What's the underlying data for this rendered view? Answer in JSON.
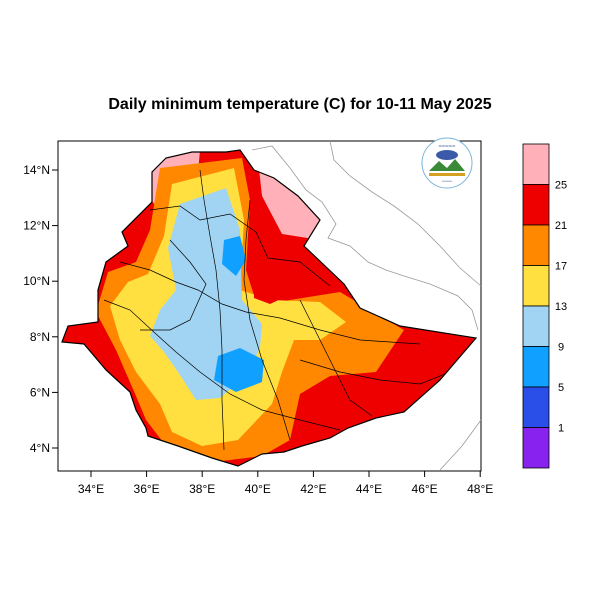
{
  "title": "Daily minimum temperature (C) for 10-11 May 2025",
  "map": {
    "lon_range": [
      33,
      48
    ],
    "lat_range": [
      3,
      15
    ],
    "x_ticks": [
      {
        "value": 34,
        "label": "34°E"
      },
      {
        "value": 36,
        "label": "36°E"
      },
      {
        "value": 38,
        "label": "38°E"
      },
      {
        "value": 40,
        "label": "40°E"
      },
      {
        "value": 42,
        "label": "42°E"
      },
      {
        "value": 44,
        "label": "44°E"
      },
      {
        "value": 46,
        "label": "46°E"
      },
      {
        "value": 48,
        "label": "48°E"
      }
    ],
    "y_ticks": [
      {
        "value": 4,
        "label": "4°N"
      },
      {
        "value": 6,
        "label": "6°N"
      },
      {
        "value": 8,
        "label": "8°N"
      },
      {
        "value": 10,
        "label": "10°N"
      },
      {
        "value": 12,
        "label": "12°N"
      },
      {
        "value": 14,
        "label": "14°N"
      }
    ]
  },
  "colorbar": {
    "bins": [
      {
        "color": "#ffb0b8"
      },
      {
        "color": "#ee0000"
      },
      {
        "color": "#ff8800"
      },
      {
        "color": "#ffe040"
      },
      {
        "color": "#a0d4f2"
      },
      {
        "color": "#10a0ff"
      },
      {
        "color": "#2a4ee8"
      },
      {
        "color": "#8822ee"
      }
    ],
    "labels": [
      "25",
      "21",
      "17",
      "13",
      "9",
      "5",
      "1"
    ]
  },
  "logo": {
    "icon": "meteorology-agency-logo"
  }
}
